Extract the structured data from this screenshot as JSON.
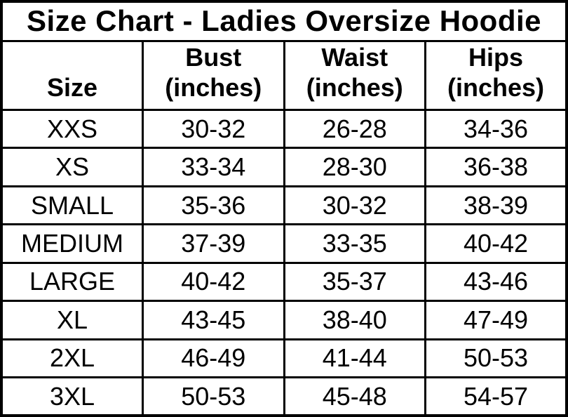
{
  "title": "Size Chart - Ladies Oversize Hoodie",
  "colors": {
    "background": "#ffffff",
    "border": "#000000",
    "text": "#000000"
  },
  "table": {
    "header_display": [
      "Size",
      "Bust\n(inches)",
      "Waist\n(inches)",
      "Hips\n(inches)"
    ]
  },
  "chart_data": {
    "type": "table",
    "title": "Size Chart - Ladies Oversize Hoodie",
    "columns": [
      "Size",
      "Bust (inches)",
      "Waist (inches)",
      "Hips (inches)"
    ],
    "rows": [
      {
        "size": "XXS",
        "bust": "30-32",
        "waist": "26-28",
        "hips": "34-36"
      },
      {
        "size": "XS",
        "bust": "33-34",
        "waist": "28-30",
        "hips": "36-38"
      },
      {
        "size": "SMALL",
        "bust": "35-36",
        "waist": "30-32",
        "hips": "38-39"
      },
      {
        "size": "MEDIUM",
        "bust": "37-39",
        "waist": "33-35",
        "hips": "40-42"
      },
      {
        "size": "LARGE",
        "bust": "40-42",
        "waist": "35-37",
        "hips": "43-46"
      },
      {
        "size": "XL",
        "bust": "43-45",
        "waist": "38-40",
        "hips": "47-49"
      },
      {
        "size": "2XL",
        "bust": "46-49",
        "waist": "41-44",
        "hips": "50-53"
      },
      {
        "size": "3XL",
        "bust": "50-53",
        "waist": "45-48",
        "hips": "54-57"
      }
    ]
  }
}
